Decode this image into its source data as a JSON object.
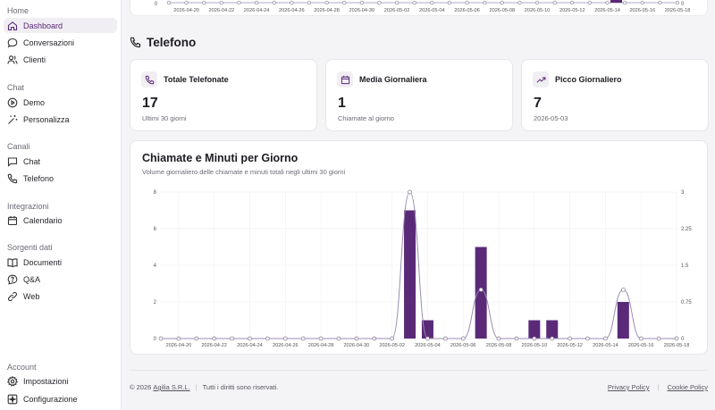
{
  "sidebar": {
    "sections": [
      {
        "title": "Home",
        "items": [
          {
            "label": "Dashboard",
            "icon": "home-icon",
            "active": true
          },
          {
            "label": "Conversazioni",
            "icon": "chat-bubble-icon"
          },
          {
            "label": "Clienti",
            "icon": "users-icon"
          }
        ]
      },
      {
        "title": "Chat",
        "items": [
          {
            "label": "Demo",
            "icon": "play-circle-icon"
          },
          {
            "label": "Personalizza",
            "icon": "magic-wand-icon"
          }
        ]
      },
      {
        "title": "Canali",
        "items": [
          {
            "label": "Chat",
            "icon": "message-square-icon"
          },
          {
            "label": "Telefono",
            "icon": "phone-icon"
          }
        ]
      },
      {
        "title": "Integrazioni",
        "items": [
          {
            "label": "Calendario",
            "icon": "calendar-icon"
          }
        ]
      },
      {
        "title": "Sorgenti dati",
        "items": [
          {
            "label": "Documenti",
            "icon": "book-icon"
          },
          {
            "label": "Q&A",
            "icon": "help-bubble-icon"
          },
          {
            "label": "Web",
            "icon": "link-icon"
          }
        ]
      }
    ],
    "account": {
      "title": "Account",
      "items": [
        {
          "label": "Impostazioni",
          "icon": "gear-icon"
        },
        {
          "label": "Configurazione",
          "icon": "sparkle-icon"
        }
      ]
    }
  },
  "top_chart": {
    "x_labels": [
      "2026-04-20",
      "2026-04-22",
      "2026-04-24",
      "2026-04-26",
      "2026-04-28",
      "2026-04-30",
      "2026-05-02",
      "2026-05-04",
      "2026-05-06",
      "2026-05-08",
      "2026-05-10",
      "2026-05-12",
      "2026-05-14",
      "2026-05-16",
      "2026-05-18"
    ],
    "y_left": "0",
    "y_right": "0"
  },
  "section": {
    "title": "Telefono"
  },
  "cards": [
    {
      "title": "Totale Telefonate",
      "value": "17",
      "sub": "Ultimi 30 giorni",
      "icon": "phone-icon"
    },
    {
      "title": "Media Giornaliera",
      "value": "1",
      "sub": "Chiamate al giorno",
      "icon": "calendar-icon"
    },
    {
      "title": "Picco Giornaliero",
      "value": "7",
      "sub": "2026-05-03",
      "icon": "trending-up-icon"
    }
  ],
  "chart": {
    "title": "Chiamate e Minuti per Giorno",
    "subtitle": "Volume giornaliero delle chiamate e minuti totali negli ultimi 30 giorni"
  },
  "chart_data": {
    "type": "bar",
    "x": [
      "2026-04-19",
      "2026-04-20",
      "2026-04-21",
      "2026-04-22",
      "2026-04-23",
      "2026-04-24",
      "2026-04-25",
      "2026-04-26",
      "2026-04-27",
      "2026-04-28",
      "2026-04-29",
      "2026-04-30",
      "2026-05-01",
      "2026-05-02",
      "2026-05-03",
      "2026-05-04",
      "2026-05-05",
      "2026-05-06",
      "2026-05-07",
      "2026-05-08",
      "2026-05-09",
      "2026-05-10",
      "2026-05-11",
      "2026-05-12",
      "2026-05-13",
      "2026-05-14",
      "2026-05-15",
      "2026-05-16",
      "2026-05-17",
      "2026-05-18"
    ],
    "x_tick_labels": [
      "2026-04-20",
      "2026-04-22",
      "2026-04-24",
      "2026-04-26",
      "2026-04-28",
      "2026-04-30",
      "2026-05-02",
      "2026-05-04",
      "2026-05-06",
      "2026-05-08",
      "2026-05-10",
      "2026-05-12",
      "2026-05-14",
      "2026-05-16",
      "2026-05-18"
    ],
    "series": [
      {
        "type": "bar",
        "axis": "left",
        "color": "#5a2a78",
        "values": [
          0,
          0,
          0,
          0,
          0,
          0,
          0,
          0,
          0,
          0,
          0,
          0,
          0,
          0,
          7,
          1,
          0,
          0,
          5,
          0,
          0,
          1,
          1,
          0,
          0,
          0,
          2,
          0,
          0,
          0
        ]
      },
      {
        "type": "line",
        "axis": "right",
        "color": "#9b8cb0",
        "values": [
          0,
          0,
          0,
          0,
          0,
          0,
          0,
          0,
          0,
          0,
          0,
          0,
          0,
          0,
          3,
          0,
          0,
          0,
          1,
          0,
          0,
          0,
          0,
          0,
          0,
          0,
          1,
          0,
          0,
          0
        ]
      }
    ],
    "y_left": {
      "min": 0,
      "max": 8,
      "ticks": [
        "0",
        "2",
        "4",
        "6",
        "8"
      ]
    },
    "y_right": {
      "min": 0,
      "max": 3,
      "ticks": [
        "0",
        "0.75",
        "1.5",
        "2.25",
        "3"
      ]
    },
    "grid": true,
    "legend": "none"
  },
  "footer": {
    "copyright": "© 2026",
    "company": "Agilia S.R.L.",
    "rights": "Tutti i diritti sono riservati.",
    "privacy": "Privacy Policy",
    "cookie": "Cookie Policy"
  },
  "colors": {
    "accent": "#5a2a78",
    "line": "#9b8cb0"
  }
}
